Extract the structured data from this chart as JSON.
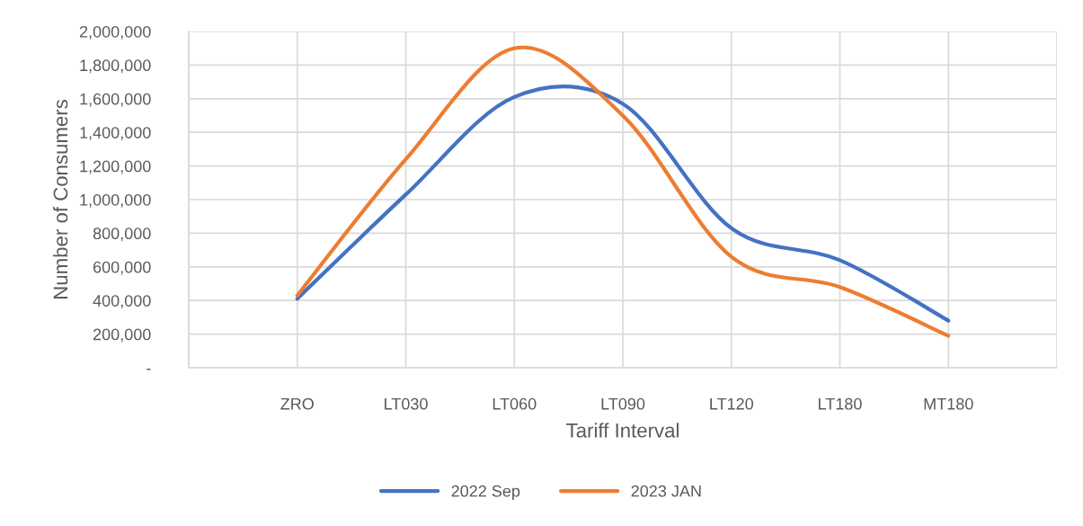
{
  "chart_data": {
    "type": "line",
    "xlabel": "Tariff Interval",
    "ylabel": "Number of Consumers",
    "categories": [
      null,
      "ZRO",
      "LT030",
      "LT060",
      "LT090",
      "LT120",
      "LT180",
      "MT180",
      null
    ],
    "series": [
      {
        "name": "2022 Sep",
        "color": "#4472c4",
        "values": [
          null,
          410000,
          1030000,
          1610000,
          1570000,
          830000,
          640000,
          280000,
          null
        ]
      },
      {
        "name": "2023 JAN",
        "color": "#ed7d31",
        "values": [
          null,
          430000,
          1240000,
          1900000,
          1500000,
          660000,
          480000,
          190000,
          null
        ]
      }
    ],
    "ylim": [
      0,
      2000000
    ],
    "yticks": [
      {
        "value": 0,
        "label": "-"
      },
      {
        "value": 200000,
        "label": "200,000"
      },
      {
        "value": 400000,
        "label": "400,000"
      },
      {
        "value": 600000,
        "label": "600,000"
      },
      {
        "value": 800000,
        "label": "800,000"
      },
      {
        "value": 1000000,
        "label": "1,000,000"
      },
      {
        "value": 1200000,
        "label": "1,200,000"
      },
      {
        "value": 1400000,
        "label": "1,400,000"
      },
      {
        "value": 1600000,
        "label": "1,600,000"
      },
      {
        "value": 1800000,
        "label": "1,800,000"
      },
      {
        "value": 2000000,
        "label": "2,000,000"
      }
    ],
    "grid": true,
    "legend": "bottom",
    "line_style": "solid",
    "marker": "none"
  }
}
